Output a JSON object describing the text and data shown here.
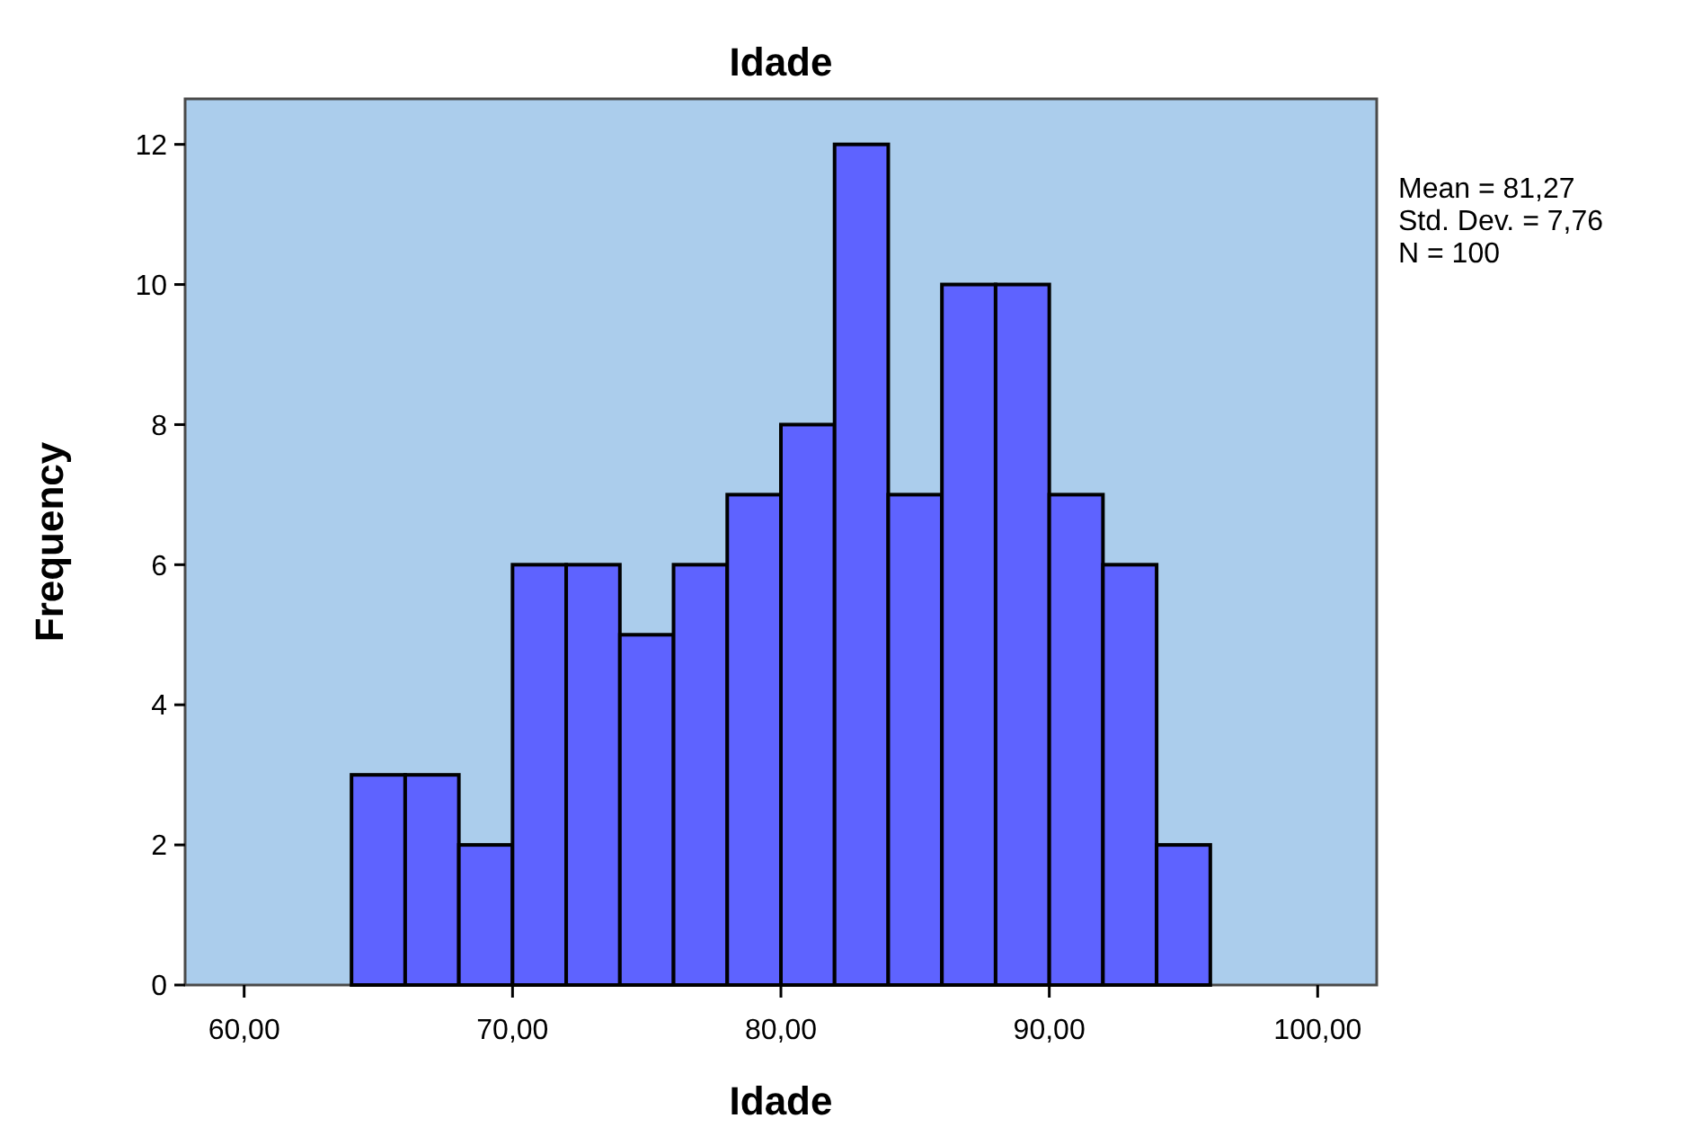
{
  "chart_data": {
    "type": "histogram",
    "title": "Idade",
    "xlabel": "Idade",
    "ylabel": "Frequency",
    "bins": [
      64,
      66,
      68,
      70,
      72,
      74,
      76,
      78,
      80,
      82,
      84,
      86,
      88,
      90,
      92,
      94,
      96
    ],
    "values": [
      3,
      3,
      2,
      6,
      6,
      5,
      6,
      7,
      8,
      12,
      7,
      10,
      10,
      7,
      6,
      2
    ],
    "color": "#5e63ff",
    "xlim": [
      57.8,
      102.2
    ],
    "xticks": [
      {
        "value": 60,
        "label": "60,00"
      },
      {
        "value": 70,
        "label": "70,00"
      },
      {
        "value": 80,
        "label": "80,00"
      },
      {
        "value": 90,
        "label": "90,00"
      },
      {
        "value": 100,
        "label": "100,00"
      }
    ],
    "ylim": [
      0,
      12.65
    ],
    "yticks": [
      0,
      2,
      4,
      6,
      8,
      10,
      12
    ],
    "annotations": [
      "Mean = 81,27",
      "Std. Dev. = 7,76",
      "N = 100"
    ],
    "grid": false
  }
}
